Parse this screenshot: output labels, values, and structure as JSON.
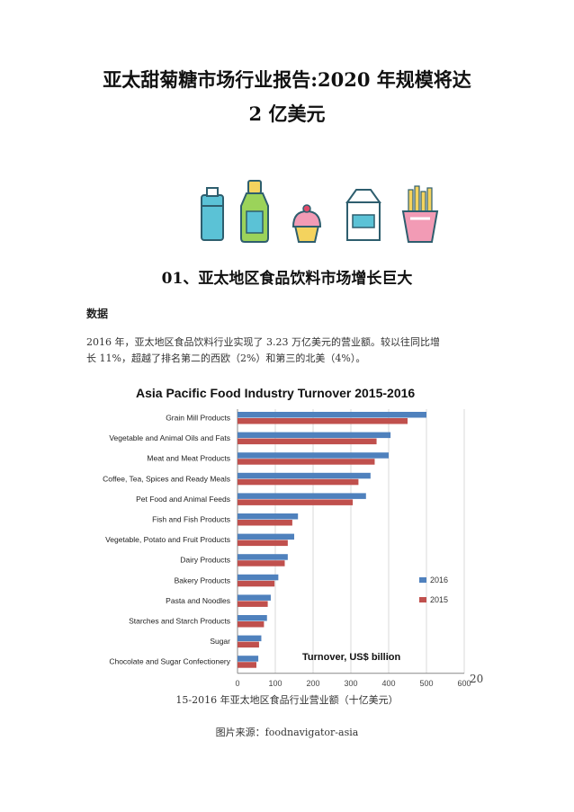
{
  "document": {
    "title_line1": "亚太甜菊糖市场行业报告:2020 年规模将达",
    "title_line2": "2 亿美元",
    "section_heading": "01、亚太地区食品饮料市场增长巨大",
    "subheading": "数据",
    "paragraph_line1": "2016 年，亚太地区食品饮料行业实现了 3.23 万亿美元的营业额。较以往同比增",
    "paragraph_line2": "长 11%，超越了排名第二的西欧（2%）和第三的北美（4%）。",
    "caption": "15-2016 年亚太地区食品行业营业额（十亿美元）",
    "source": "图片来源：foodnavigator-asia",
    "page_number": "20"
  },
  "icons": [
    "bottle-icon",
    "juice-bottle-icon",
    "cupcake-icon",
    "milk-carton-icon",
    "fries-icon"
  ],
  "chart_data": {
    "type": "bar",
    "orientation": "horizontal",
    "title": "Asia Pacific Food Industry Turnover 2015-2016",
    "xlabel": "Turnover, US$ billion",
    "xlim": [
      0,
      600
    ],
    "xticks": [
      0,
      100,
      200,
      300,
      400,
      500,
      600
    ],
    "grid": true,
    "legend_position": "right",
    "categories": [
      "Grain Mill Products",
      "Vegetable and Animal Oils and Fats",
      "Meat and Meat Products",
      "Coffee, Tea, Spices and Ready Meals",
      "Pet Food and Animal Feeds",
      "Fish and Fish Products",
      "Vegetable, Potato and Fruit Products",
      "Dairy Products",
      "Bakery Products",
      "Pasta and Noodles",
      "Starches and Starch Products",
      "Sugar",
      "Chocolate and Sugar Confectionery"
    ],
    "series": [
      {
        "name": "2016",
        "color": "#4f81bd",
        "values": [
          500,
          405,
          400,
          352,
          340,
          160,
          150,
          133,
          108,
          88,
          78,
          63,
          55
        ]
      },
      {
        "name": "2015",
        "color": "#c0504d",
        "values": [
          450,
          368,
          363,
          320,
          305,
          145,
          133,
          125,
          98,
          80,
          70,
          57,
          50
        ]
      }
    ]
  }
}
